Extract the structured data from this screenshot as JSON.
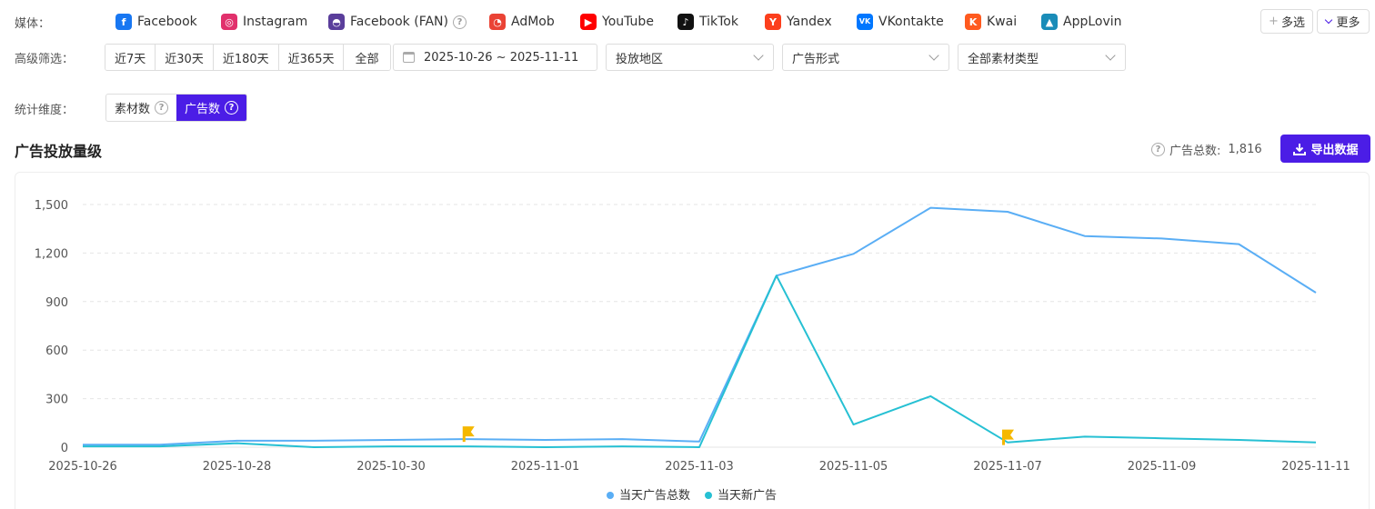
{
  "media": {
    "label": "媒体：",
    "items": [
      {
        "name": "Facebook",
        "icon": "facebook-icon",
        "color": "#1877f2"
      },
      {
        "name": "Instagram",
        "icon": "instagram-icon",
        "color": "#e1306c"
      },
      {
        "name": "Facebook (FAN)",
        "icon": "facebook-audience-network-icon",
        "color": "#5a3e9b"
      },
      {
        "name": "AdMob",
        "icon": "admob-icon",
        "color": "#ea4335"
      },
      {
        "name": "YouTube",
        "icon": "youtube-icon",
        "color": "#ff0000"
      },
      {
        "name": "TikTok",
        "icon": "tiktok-icon",
        "color": "#111111"
      },
      {
        "name": "Yandex",
        "icon": "yandex-icon",
        "color": "#fc3f1d"
      },
      {
        "name": "VKontakte",
        "icon": "vkontakte-icon",
        "color": "#0077ff"
      },
      {
        "name": "Kwai",
        "icon": "kwai-icon",
        "color": "#ff5a1f"
      },
      {
        "name": "AppLovin",
        "icon": "applovin-icon",
        "color": "#1a8cb8"
      }
    ],
    "multi_select": "多选",
    "more": "更多"
  },
  "filters": {
    "label": "高级筛选：",
    "ranges": [
      "近7天",
      "近30天",
      "近180天",
      "近365天",
      "全部"
    ],
    "date_range": "2025-10-26 ~ 2025-11-11",
    "region": "投放地区",
    "ad_format": "广告形式",
    "material_type": "全部素材类型"
  },
  "dimension": {
    "label": "统计维度：",
    "options": [
      "素材数",
      "广告数"
    ],
    "selected": "广告数"
  },
  "section": {
    "title": "广告投放量级",
    "total_label": "广告总数:",
    "total_value": "1,816",
    "export": "导出数据"
  },
  "colors": {
    "accent": "#4b1de6",
    "series_total": "#5aaef5",
    "series_new": "#26c0d3",
    "marker": "#f5b800"
  },
  "chart_data": {
    "type": "line",
    "title": "",
    "xlabel": "",
    "ylabel": "",
    "x": [
      "2025-10-26",
      "2025-10-27",
      "2025-10-28",
      "2025-10-29",
      "2025-10-30",
      "2025-10-31",
      "2025-11-01",
      "2025-11-02",
      "2025-11-03",
      "2025-11-04",
      "2025-11-05",
      "2025-11-06",
      "2025-11-07",
      "2025-11-08",
      "2025-11-09",
      "2025-11-10",
      "2025-11-11"
    ],
    "x_tick_labels": [
      "2025-10-26",
      "2025-10-28",
      "2025-10-30",
      "2025-11-01",
      "2025-11-03",
      "2025-11-05",
      "2025-11-07",
      "2025-11-09",
      "2025-11-11"
    ],
    "y_ticks": [
      "0",
      "300",
      "600",
      "900",
      "1,200",
      "1,500"
    ],
    "ylim": [
      0,
      1500
    ],
    "grid": "horizontal-dashed",
    "legend_position": "bottom-center",
    "series": [
      {
        "name": "当天广告总数",
        "values": [
          15,
          15,
          40,
          40,
          45,
          50,
          45,
          50,
          35,
          1060,
          1195,
          1480,
          1455,
          1305,
          1290,
          1255,
          955
        ]
      },
      {
        "name": "当天新广告",
        "values": [
          5,
          5,
          25,
          0,
          5,
          5,
          0,
          5,
          0,
          1060,
          140,
          315,
          30,
          65,
          55,
          45,
          30
        ]
      }
    ],
    "markers": [
      {
        "x": "2025-10-31",
        "y": 50
      },
      {
        "x": "2025-11-07",
        "y": 30
      }
    ]
  }
}
